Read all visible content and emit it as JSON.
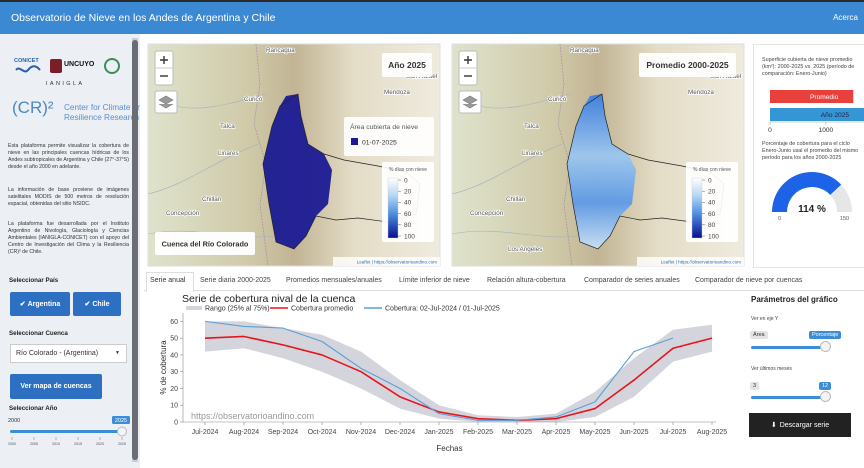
{
  "header": {
    "title": "Observatorio de Nieve en los Andes de Argentina y Chile",
    "link": "Acerca"
  },
  "sidebar": {
    "logos": [
      "CONICET",
      "UNCUYO",
      "IANIGLA"
    ],
    "cr2": {
      "mark": "(CR)²",
      "name": "Center for Climate and Resilience Research"
    },
    "paragraphs": [
      "Esta plataforma permite visualizar la cobertura de nieve en las principales cuencas hídricas de los Andes subtropicales de Argentina y Chile (27°-37°S) desde el año 2000 en adelante.",
      "La información de base proviene de imágenes satelitales MODIS de 500 metros de resolución espacial, obtenidas del sitio NSIDC.",
      "La plataforma fue desarrollada por el Instituto Argentino de Nivología, Glaciología y Ciencias Ambientales (IANIGLA-CONICET) con el apoyo del Centro de Investigación del Clima y la Resiliencia (CR)² de Chile."
    ],
    "country_label": "Seleccionar País",
    "countries": [
      "Argentina",
      "Chile"
    ],
    "basin_label": "Seleccionar Cuenca",
    "basin": "Río Colorado - (Argentina)",
    "basin_button": "Ver mapa de cuencas",
    "year_label": "Seleccionar Año",
    "year_slider": {
      "min": 2000,
      "value": 2025,
      "ticks": [
        2000,
        2005,
        2010,
        2015,
        2020,
        2025
      ]
    }
  },
  "maps": {
    "titles": [
      "Año 2025",
      "Promedio 2000-2025"
    ],
    "places": [
      "Rancagua",
      "San Rafael",
      "Curicó",
      "Mendoza",
      "Talca",
      "Linares",
      "Chillan",
      "Concepción",
      "Los Angeles"
    ],
    "area_legend": {
      "title": "Área cubierta de nieve",
      "date": "01-07-2025"
    },
    "scale_legend": {
      "title": "% días con nieve",
      "ticks": [
        0,
        20,
        40,
        60,
        80,
        100
      ]
    },
    "basin_label": "Cuenca del Río Colorado",
    "attribution": "Leaflet | https://observatorioandino.com"
  },
  "tabs": [
    "Serie anual",
    "Serie diaria 2000-2025",
    "Promedios mensuales/anuales",
    "Límite inferior de nieve",
    "Relación altura-cobertura",
    "Comparador de series anuales",
    "Comparador de nieve por cuencas"
  ],
  "params": {
    "title": "Parámetros del gráfico",
    "axis_label": "Ver en eje Y",
    "axis_options": [
      "Área",
      "Porcentaje"
    ],
    "months_label": "Ver últimos meses",
    "months_slider": {
      "min": 3,
      "value": 12
    },
    "download": "Descargar serie"
  },
  "chart_data": [
    {
      "type": "line",
      "title": "Serie de cobertura nival de la cuenca",
      "xlabel": "Fechas",
      "ylabel": "% de cobertura",
      "watermark": "https://observatorioandino.com",
      "categories": [
        "Jul-2024",
        "Aug-2024",
        "Sep-2024",
        "Oct-2024",
        "Nov-2024",
        "Dec-2024",
        "Jan-2025",
        "Feb-2025",
        "Mar-2025",
        "Apr-2025",
        "May-2025",
        "Jun-2025",
        "Jul-2025",
        "Aug-2025"
      ],
      "ylim": [
        0,
        65
      ],
      "yticks": [
        0,
        10,
        20,
        30,
        40,
        50,
        60
      ],
      "range": {
        "name": "Rango (25% al 75%)",
        "color": "#d4d5dc",
        "low": [
          42,
          44,
          38,
          30,
          20,
          8,
          2,
          0,
          0,
          0,
          3,
          15,
          36,
          42
        ],
        "high": [
          60,
          60,
          56,
          52,
          42,
          25,
          10,
          4,
          3,
          5,
          18,
          38,
          55,
          58
        ]
      },
      "series": [
        {
          "name": "Cobertura promedio",
          "color": "#e8141c",
          "values": [
            50,
            51,
            46,
            40,
            30,
            15,
            6,
            2,
            1,
            2,
            8,
            25,
            44,
            50
          ]
        },
        {
          "name": "Cobertura: 02-Jul-2024 / 01-Jul-2025",
          "color": "#5a9fd8",
          "values": [
            60,
            57,
            56,
            48,
            32,
            20,
            5,
            1,
            1,
            3,
            12,
            42,
            50,
            null
          ]
        }
      ]
    },
    {
      "type": "hbar",
      "title": "Superficie cubierta de nieve promedio (km²): 2000-2025 vs. 2025 (período de comparación: Enero-Junio)",
      "categories": [
        "Promedio",
        "Año 2025"
      ],
      "values": [
        1490,
        1700
      ],
      "colors": [
        "#e8413c",
        "#3596d6"
      ],
      "xlim": [
        0,
        1700
      ],
      "xticks": [
        0,
        1000
      ]
    },
    {
      "type": "gauge",
      "title": "Porcentaje de cobertura para el ciclo Enero-Junio usal el promedio del mismo período para los años 2000-2025",
      "values": [
        114
      ],
      "value_labels": [
        "114 %"
      ],
      "color": "#1c63e8",
      "ylim": [
        0,
        150
      ],
      "yticks": [
        0,
        150
      ]
    }
  ]
}
